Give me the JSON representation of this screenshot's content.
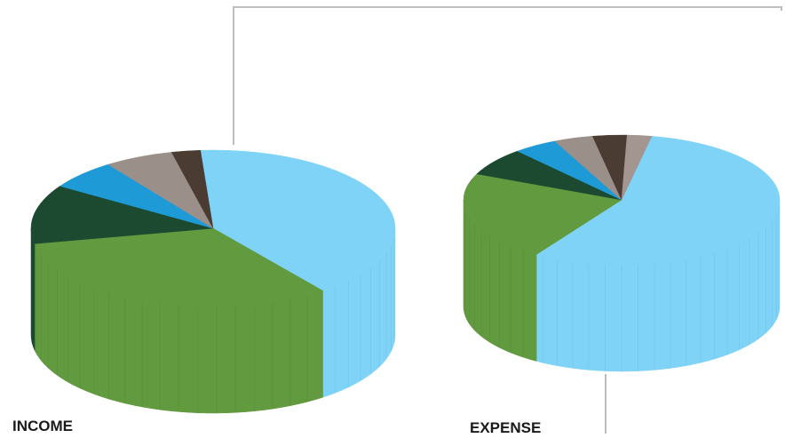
{
  "colors": {
    "light_blue": "#7fd3f7",
    "green": "#629a3f",
    "dark_green": "#1c4a31",
    "blue": "#1e9bd7",
    "taupe": "#9b8f8a",
    "dark_brown": "#4a3b33",
    "light_taupe": "#a3958f",
    "connector": "#bdbdbd"
  },
  "chart_data": [
    {
      "type": "pie",
      "title": "INCOME",
      "categories": [
        "",
        "",
        "",
        "",
        "",
        ""
      ],
      "values": [
        40,
        31.5,
        12,
        6,
        6,
        2.5
      ],
      "slice_colors": [
        "#7fd3f7",
        "#629a3f",
        "#1c4a31",
        "#1e9bd7",
        "#9b8f8a",
        "#4a3b33"
      ],
      "style": "3d"
    },
    {
      "type": "pie",
      "title": "EXPENSE",
      "categories": [
        "",
        "",
        "",
        "",
        "",
        "",
        ""
      ],
      "values": [
        56,
        22.5,
        7,
        4.5,
        4,
        3.5,
        2.5
      ],
      "slice_colors": [
        "#7fd3f7",
        "#629a3f",
        "#1c4a31",
        "#1e9bd7",
        "#9b8f8a",
        "#4a3b33",
        "#a3958f"
      ],
      "style": "3d"
    }
  ]
}
